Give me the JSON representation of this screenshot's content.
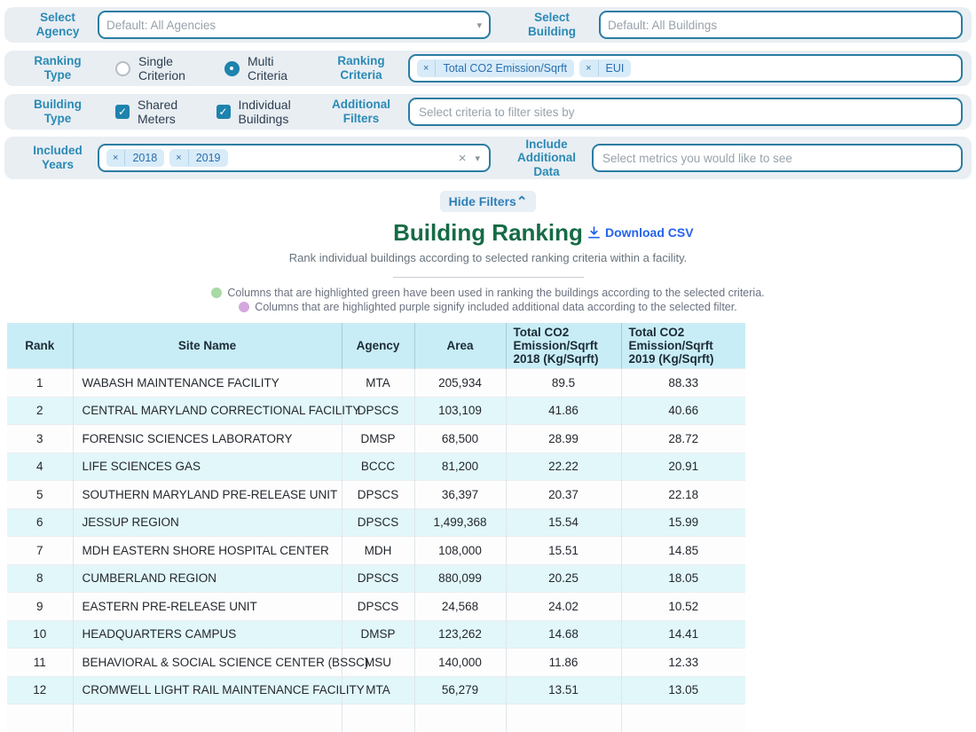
{
  "filters": {
    "select_agency": {
      "label": "Select Agency",
      "value": "Default: All Agencies"
    },
    "select_building": {
      "label": "Select Building",
      "value": "Default: All Buildings"
    },
    "ranking_type": {
      "label": "Ranking Type",
      "options": [
        {
          "label": "Single Criterion",
          "selected": false
        },
        {
          "label": "Multi Criteria",
          "selected": true
        }
      ]
    },
    "ranking_criteria": {
      "label": "Ranking Criteria",
      "tags": [
        "Total CO2 Emission/Sqrft",
        "EUI"
      ]
    },
    "building_type": {
      "label": "Building Type",
      "options": [
        {
          "label": "Shared Meters",
          "checked": true
        },
        {
          "label": "Individual Buildings",
          "checked": true
        }
      ]
    },
    "additional_filters": {
      "label": "Additional Filters",
      "placeholder": "Select criteria to filter sites by"
    },
    "included_years": {
      "label": "Included Years",
      "tags": [
        "2018",
        "2019"
      ]
    },
    "include_additional_data": {
      "label": "Include Additional Data",
      "placeholder": "Select metrics you would like to see"
    },
    "hide_filters_label": "Hide Filters",
    "icons": {
      "caret": "▾",
      "clear": "×",
      "check": "✓",
      "remove_tag": "×",
      "collapse": "⌃"
    }
  },
  "header": {
    "title": "Building Ranking",
    "download_csv_label": "Download CSV",
    "subtitle": "Rank individual buildings according to selected ranking criteria within a facility.",
    "legend": [
      {
        "color": "#a9d9a4",
        "text": "Columns that are highlighted green have been used in ranking the buildings according to the selected criteria."
      },
      {
        "color": "#d5a8de",
        "text": "Columns that are highlighted purple signify included additional data according to the selected filter."
      }
    ]
  },
  "colors": {
    "accent_teal": "#1e83ad",
    "label_blue": "#2a8ab5",
    "title_green": "#156b45",
    "download_blue": "#2563eb",
    "table_header_bg": "#c8edf6",
    "row_stripe_bg": "#e2f7fa"
  },
  "table": {
    "columns": [
      "Rank",
      "Site Name",
      "Agency",
      "Area",
      "Total CO2 Emission/Sqrft 2018 (Kg/Sqrft)",
      "Total CO2 Emission/Sqrft 2019 (Kg/Sqrft)"
    ],
    "rows": [
      [
        "1",
        "WABASH MAINTENANCE FACILITY",
        "MTA",
        "205,934",
        "89.5",
        "88.33"
      ],
      [
        "2",
        "CENTRAL MARYLAND CORRECTIONAL FACILITY",
        "DPSCS",
        "103,109",
        "41.86",
        "40.66"
      ],
      [
        "3",
        "FORENSIC SCIENCES LABORATORY",
        "DMSP",
        "68,500",
        "28.99",
        "28.72"
      ],
      [
        "4",
        "LIFE SCIENCES GAS",
        "BCCC",
        "81,200",
        "22.22",
        "20.91"
      ],
      [
        "5",
        "SOUTHERN MARYLAND PRE-RELEASE UNIT",
        "DPSCS",
        "36,397",
        "20.37",
        "22.18"
      ],
      [
        "6",
        "JESSUP REGION",
        "DPSCS",
        "1,499,368",
        "15.54",
        "15.99"
      ],
      [
        "7",
        "MDH EASTERN SHORE HOSPITAL CENTER",
        "MDH",
        "108,000",
        "15.51",
        "14.85"
      ],
      [
        "8",
        "CUMBERLAND REGION",
        "DPSCS",
        "880,099",
        "20.25",
        "18.05"
      ],
      [
        "9",
        "EASTERN PRE-RELEASE UNIT",
        "DPSCS",
        "24,568",
        "24.02",
        "10.52"
      ],
      [
        "10",
        "HEADQUARTERS CAMPUS",
        "DMSP",
        "123,262",
        "14.68",
        "14.41"
      ],
      [
        "11",
        "BEHAVIORAL & SOCIAL SCIENCE CENTER (BSSC)",
        "MSU",
        "140,000",
        "11.86",
        "12.33"
      ],
      [
        "12",
        "CROMWELL LIGHT RAIL MAINTENANCE FACILITY",
        "MTA",
        "56,279",
        "13.51",
        "13.05"
      ],
      [
        "",
        "",
        "",
        "",
        "",
        ""
      ]
    ]
  }
}
